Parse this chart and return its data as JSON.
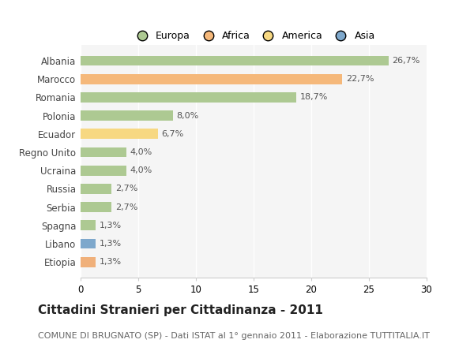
{
  "categories": [
    "Albania",
    "Marocco",
    "Romania",
    "Polonia",
    "Ecuador",
    "Regno Unito",
    "Ucraina",
    "Russia",
    "Serbia",
    "Spagna",
    "Libano",
    "Etiopia"
  ],
  "values": [
    26.7,
    22.7,
    18.7,
    8.0,
    6.7,
    4.0,
    4.0,
    2.7,
    2.7,
    1.3,
    1.3,
    1.3
  ],
  "labels": [
    "26,7%",
    "22,7%",
    "18,7%",
    "8,0%",
    "6,7%",
    "4,0%",
    "4,0%",
    "2,7%",
    "2,7%",
    "1,3%",
    "1,3%",
    "1,3%"
  ],
  "colors": [
    "#adc992",
    "#f5b87a",
    "#adc992",
    "#adc992",
    "#f7d882",
    "#adc992",
    "#adc992",
    "#adc992",
    "#adc992",
    "#adc992",
    "#7ea8cc",
    "#f0b07a"
  ],
  "legend_labels": [
    "Europa",
    "Africa",
    "America",
    "Asia"
  ],
  "legend_colors": [
    "#adc992",
    "#f5b87a",
    "#f7d882",
    "#7ea8cc"
  ],
  "xlim": [
    0,
    30
  ],
  "xticks": [
    0,
    5,
    10,
    15,
    20,
    25,
    30
  ],
  "title": "Cittadini Stranieri per Cittadinanza - 2011",
  "subtitle": "COMUNE DI BRUGNATO (SP) - Dati ISTAT al 1° gennaio 2011 - Elaborazione TUTTITALIA.IT",
  "title_fontsize": 11,
  "subtitle_fontsize": 8,
  "label_fontsize": 8,
  "tick_fontsize": 8.5,
  "legend_fontsize": 9,
  "bar_height": 0.55,
  "bg_color": "#ffffff",
  "plot_bg_color": "#f5f5f5",
  "grid_color": "#ffffff"
}
